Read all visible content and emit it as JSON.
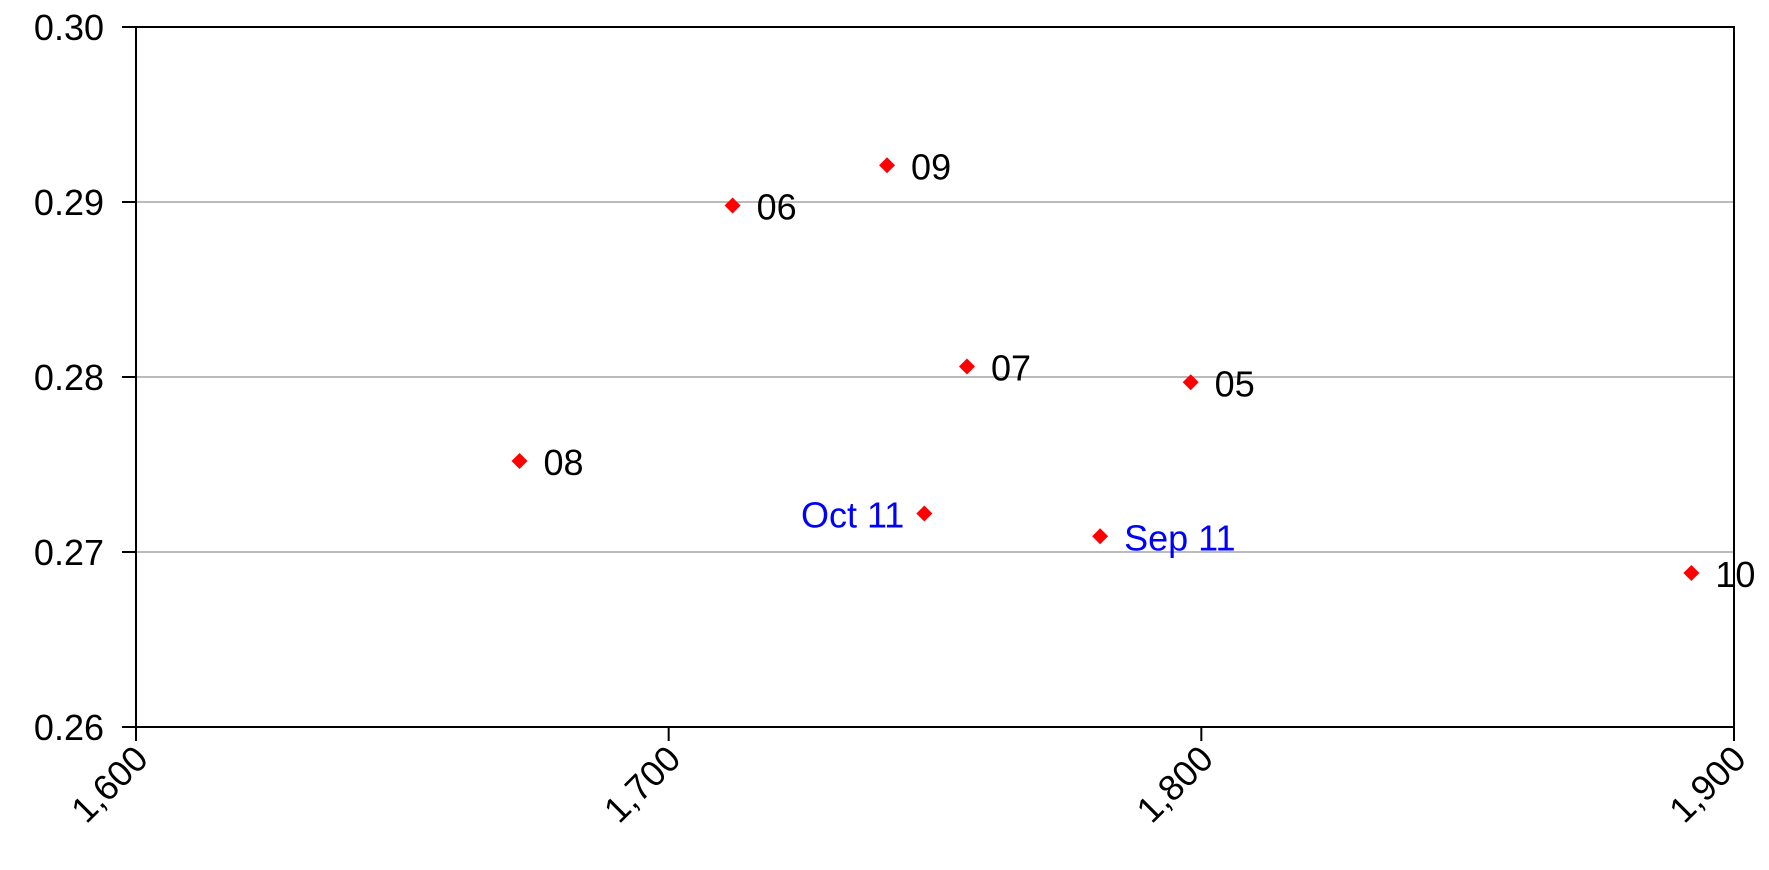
{
  "chart_data": {
    "type": "scatter",
    "title": "",
    "xlabel": "",
    "ylabel": "",
    "xlim": [
      1600,
      1900
    ],
    "ylim": [
      0.26,
      0.3
    ],
    "x_ticks": [
      {
        "value": 1600,
        "label": "1,600"
      },
      {
        "value": 1700,
        "label": "1,700"
      },
      {
        "value": 1800,
        "label": "1,800"
      },
      {
        "value": 1900,
        "label": "1,900"
      }
    ],
    "y_ticks": [
      {
        "value": 0.26,
        "label": "0.26"
      },
      {
        "value": 0.27,
        "label": "0.27"
      },
      {
        "value": 0.28,
        "label": "0.28"
      },
      {
        "value": 0.29,
        "label": "0.29"
      },
      {
        "value": 0.3,
        "label": "0.30"
      }
    ],
    "grid": {
      "horizontal": true,
      "vertical": false
    },
    "legend": "none",
    "marker": {
      "shape": "diamond",
      "color": "#ff0000"
    },
    "colors": {
      "label_default": "#000000",
      "label_highlight": "#0000ff"
    },
    "points": [
      {
        "label": "05",
        "x": 1798,
        "y": 0.2797,
        "label_side": "right",
        "highlight": false
      },
      {
        "label": "06",
        "x": 1712,
        "y": 0.2898,
        "label_side": "right",
        "highlight": false
      },
      {
        "label": "07",
        "x": 1756,
        "y": 0.2806,
        "label_side": "right",
        "highlight": false
      },
      {
        "label": "08",
        "x": 1672,
        "y": 0.2752,
        "label_side": "right",
        "highlight": false
      },
      {
        "label": "09",
        "x": 1741,
        "y": 0.2921,
        "label_side": "right",
        "highlight": false
      },
      {
        "label": "10",
        "x": 1892,
        "y": 0.2688,
        "label_side": "right",
        "highlight": false
      },
      {
        "label": "Sep 11",
        "x": 1781,
        "y": 0.2709,
        "label_side": "right",
        "highlight": true
      },
      {
        "label": "Oct 11",
        "x": 1748,
        "y": 0.2722,
        "label_side": "left",
        "highlight": true
      }
    ]
  }
}
